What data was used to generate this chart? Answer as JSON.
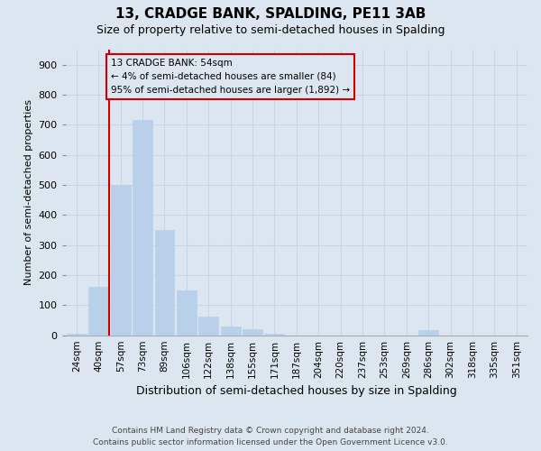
{
  "title": "13, CRADGE BANK, SPALDING, PE11 3AB",
  "subtitle": "Size of property relative to semi-detached houses in Spalding",
  "xlabel": "Distribution of semi-detached houses by size in Spalding",
  "ylabel": "Number of semi-detached properties",
  "bins": [
    "24sqm",
    "40sqm",
    "57sqm",
    "73sqm",
    "89sqm",
    "106sqm",
    "122sqm",
    "138sqm",
    "155sqm",
    "171sqm",
    "187sqm",
    "204sqm",
    "220sqm",
    "237sqm",
    "253sqm",
    "269sqm",
    "286sqm",
    "302sqm",
    "318sqm",
    "335sqm",
    "351sqm"
  ],
  "values": [
    5,
    160,
    500,
    715,
    350,
    148,
    63,
    30,
    20,
    5,
    0,
    0,
    0,
    0,
    0,
    0,
    18,
    0,
    0,
    0,
    0
  ],
  "bar_color": "#b8d0ea",
  "marker_line_color": "#cc0000",
  "annotation_line1": "13 CRADGE BANK: 54sqm",
  "annotation_line2": "← 4% of semi-detached houses are smaller (84)",
  "annotation_line3": "95% of semi-detached houses are larger (1,892) →",
  "ylim": [
    0,
    950
  ],
  "yticks": [
    0,
    100,
    200,
    300,
    400,
    500,
    600,
    700,
    800,
    900
  ],
  "grid_color": "#c8d4e8",
  "bg_color": "#dce6f0",
  "footnote_line1": "Contains HM Land Registry data © Crown copyright and database right 2024.",
  "footnote_line2": "Contains public sector information licensed under the Open Government Licence v3.0."
}
